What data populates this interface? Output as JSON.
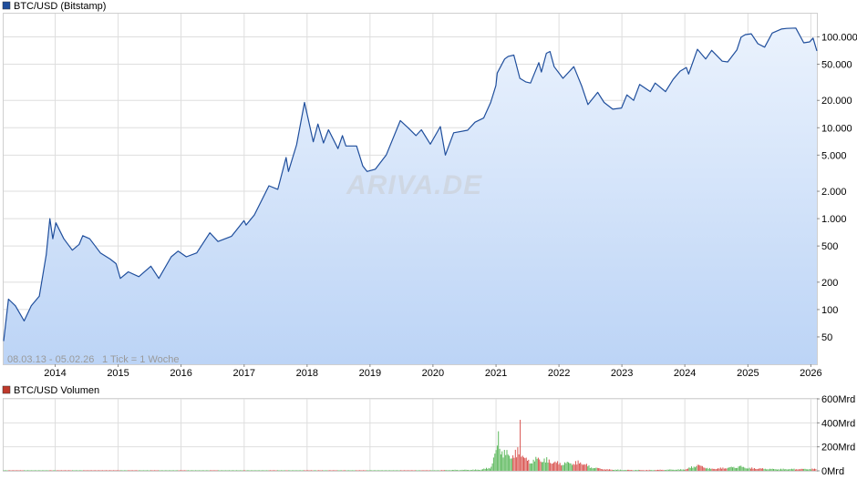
{
  "chart_data": [
    {
      "type": "line",
      "title": "BTC/USD (Bitstamp)",
      "y_scale": "log",
      "ylim": [
        25,
        180000
      ],
      "xlim": [
        "2013-03-08",
        "2026-02-05"
      ],
      "range_note": "08.03.13 - 05.02.26",
      "tick_note": "1 Tick = 1 Woche",
      "watermark": "ARIVA.DE",
      "legend_color": "#1f4e9c",
      "line_color": "#1f4e9c",
      "fill_top": "#eaf2fd",
      "fill_bottom": "#bcd4f6",
      "grid": true,
      "yticks": [
        {
          "v": 50,
          "label": "50"
        },
        {
          "v": 100,
          "label": "100"
        },
        {
          "v": 200,
          "label": "200"
        },
        {
          "v": 500,
          "label": "500"
        },
        {
          "v": 1000,
          "label": "1.000"
        },
        {
          "v": 2000,
          "label": "2.000"
        },
        {
          "v": 5000,
          "label": "5.000"
        },
        {
          "v": 10000,
          "label": "10.000"
        },
        {
          "v": 20000,
          "label": "20.000"
        },
        {
          "v": 50000,
          "label": "50.000"
        },
        {
          "v": 100000,
          "label": "100.000"
        }
      ],
      "xticks": [
        {
          "d": "2014-01-01",
          "label": "2014"
        },
        {
          "d": "2015-01-01",
          "label": "2015"
        },
        {
          "d": "2016-01-01",
          "label": "2016"
        },
        {
          "d": "2017-01-01",
          "label": "2017"
        },
        {
          "d": "2018-01-01",
          "label": "2018"
        },
        {
          "d": "2019-01-01",
          "label": "2019"
        },
        {
          "d": "2020-01-01",
          "label": "2020"
        },
        {
          "d": "2021-01-01",
          "label": "2021"
        },
        {
          "d": "2022-01-01",
          "label": "2022"
        },
        {
          "d": "2023-01-01",
          "label": "2023"
        },
        {
          "d": "2024-01-01",
          "label": "2024"
        },
        {
          "d": "2025-01-01",
          "label": "2025"
        },
        {
          "d": "2026-01-01",
          "label": "2026"
        }
      ],
      "series": [
        {
          "x": [
            "2013-03-08",
            "2013-04-05",
            "2013-05-15",
            "2013-07-05",
            "2013-08-15",
            "2013-10-01",
            "2013-11-10",
            "2013-12-01",
            "2013-12-18",
            "2014-01-05",
            "2014-02-20",
            "2014-04-10",
            "2014-05-20",
            "2014-06-10",
            "2014-07-20",
            "2014-09-20",
            "2014-11-15",
            "2014-12-20",
            "2015-01-14",
            "2015-03-01",
            "2015-05-01",
            "2015-07-10",
            "2015-08-25",
            "2015-11-05",
            "2015-12-15",
            "2016-02-01",
            "2016-04-01",
            "2016-06-16",
            "2016-08-02",
            "2016-10-20",
            "2016-12-31",
            "2017-01-12",
            "2017-03-01",
            "2017-05-25",
            "2017-07-15",
            "2017-09-01",
            "2017-09-15",
            "2017-11-01",
            "2017-12-17",
            "2018-02-06",
            "2018-03-05",
            "2018-04-06",
            "2018-05-05",
            "2018-06-29",
            "2018-07-25",
            "2018-08-14",
            "2018-10-15",
            "2018-11-20",
            "2018-12-15",
            "2019-02-01",
            "2019-04-05",
            "2019-06-26",
            "2019-08-10",
            "2019-09-25",
            "2019-10-26",
            "2019-12-17",
            "2020-02-13",
            "2020-03-13",
            "2020-04-30",
            "2020-07-20",
            "2020-09-01",
            "2020-10-21",
            "2020-12-01",
            "2020-12-31",
            "2021-01-08",
            "2021-02-20",
            "2021-03-13",
            "2021-04-14",
            "2021-05-19",
            "2021-06-22",
            "2021-07-20",
            "2021-09-06",
            "2021-09-21",
            "2021-10-20",
            "2021-11-10",
            "2021-12-04",
            "2022-01-24",
            "2022-03-28",
            "2022-05-12",
            "2022-06-18",
            "2022-08-14",
            "2022-09-20",
            "2022-11-09",
            "2022-12-30",
            "2023-01-30",
            "2023-03-10",
            "2023-04-14",
            "2023-06-15",
            "2023-07-13",
            "2023-09-11",
            "2023-10-25",
            "2023-12-05",
            "2024-01-10",
            "2024-01-23",
            "2024-03-14",
            "2024-05-01",
            "2024-06-05",
            "2024-08-05",
            "2024-09-06",
            "2024-10-29",
            "2024-11-22",
            "2024-12-17",
            "2025-01-20",
            "2025-02-28",
            "2025-04-08",
            "2025-05-22",
            "2025-07-14",
            "2025-08-14",
            "2025-10-06",
            "2025-11-21",
            "2025-12-25",
            "2026-01-14",
            "2026-02-05"
          ],
          "y": [
            45,
            130,
            110,
            75,
            110,
            140,
            400,
            1000,
            600,
            900,
            600,
            450,
            520,
            650,
            600,
            420,
            360,
            320,
            220,
            260,
            230,
            300,
            220,
            380,
            440,
            380,
            420,
            700,
            560,
            640,
            950,
            850,
            1100,
            2300,
            2100,
            4700,
            3300,
            6500,
            19000,
            7000,
            11000,
            6800,
            9500,
            5900,
            8200,
            6300,
            6300,
            3800,
            3300,
            3500,
            5000,
            12000,
            10000,
            8200,
            9500,
            6600,
            10300,
            5000,
            8800,
            9400,
            11500,
            12800,
            19000,
            29000,
            40000,
            57000,
            61000,
            63000,
            35000,
            32000,
            31000,
            52000,
            41000,
            66000,
            69000,
            47000,
            35000,
            47000,
            29000,
            18000,
            24500,
            19000,
            16000,
            16500,
            23000,
            20000,
            30000,
            25000,
            31000,
            25000,
            34000,
            42000,
            46000,
            39000,
            73000,
            57000,
            71000,
            54000,
            53000,
            72000,
            99000,
            106000,
            108000,
            84000,
            77000,
            110000,
            122000,
            124000,
            125000,
            86000,
            88000,
            97000,
            70000
          ]
        }
      ]
    },
    {
      "type": "bar",
      "title": "BTC/USD Volumen",
      "ylim": [
        0,
        600
      ],
      "unit": "Mrd",
      "legend_color": "#c0392b",
      "up_color": "#5cb85c",
      "down_color": "#d9534f",
      "yticks": [
        {
          "v": 0,
          "label": "0Mrd"
        },
        {
          "v": 200,
          "label": "200Mrd"
        },
        {
          "v": 400,
          "label": "400Mrd"
        },
        {
          "v": 600,
          "label": "600Mrd"
        }
      ],
      "profile": {
        "x": [
          "2013-03-08",
          "2019-12-31",
          "2020-03-15",
          "2020-10-01",
          "2020-12-01",
          "2021-01-05",
          "2021-01-20",
          "2021-02-15",
          "2021-03-01",
          "2021-04-15",
          "2021-05-20",
          "2021-06-15",
          "2021-07-15",
          "2021-09-01",
          "2021-11-01",
          "2022-01-01",
          "2022-05-15",
          "2022-07-01",
          "2022-10-01",
          "2023-01-01",
          "2023-06-01",
          "2024-01-01",
          "2024-03-15",
          "2024-06-01",
          "2024-11-20",
          "2025-01-01",
          "2025-06-01",
          "2026-02-05"
        ],
        "y": [
          1,
          2,
          8,
          12,
          35,
          230,
          280,
          180,
          190,
          160,
          240,
          130,
          100,
          130,
          110,
          80,
          90,
          40,
          15,
          10,
          8,
          15,
          60,
          20,
          45,
          30,
          18,
          20
        ]
      },
      "spikes": [
        {
          "d": "2021-01-12",
          "v": 330
        },
        {
          "d": "2021-05-19",
          "v": 425
        },
        {
          "d": "2024-03-13",
          "v": 50
        },
        {
          "d": "2024-11-13",
          "v": 40
        }
      ]
    }
  ]
}
